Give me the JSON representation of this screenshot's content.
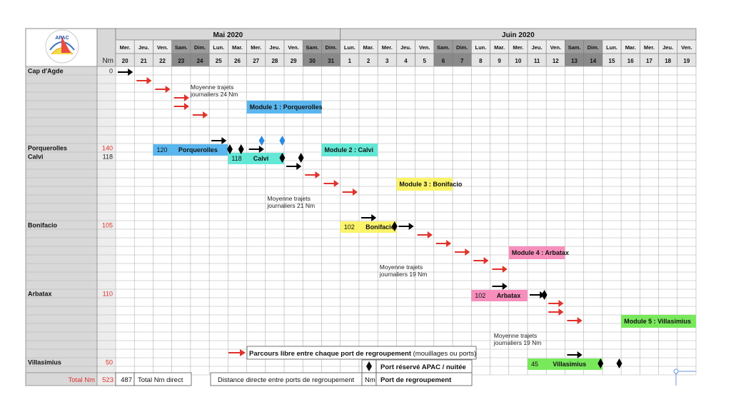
{
  "months": [
    {
      "label": "Mai 2020",
      "first_day": 0,
      "last_day": 11
    },
    {
      "label": "Juin 2020",
      "first_day": 12,
      "last_day": 30
    }
  ],
  "days": [
    {
      "wd": "Mer.",
      "d": "20",
      "we": false
    },
    {
      "wd": "Jeu.",
      "d": "21",
      "we": false
    },
    {
      "wd": "Ven.",
      "d": "22",
      "we": false
    },
    {
      "wd": "Sam.",
      "d": "23",
      "we": true
    },
    {
      "wd": "Dim.",
      "d": "24",
      "we": true
    },
    {
      "wd": "Lun.",
      "d": "25",
      "we": false
    },
    {
      "wd": "Mar.",
      "d": "26",
      "we": false
    },
    {
      "wd": "Mer.",
      "d": "27",
      "we": false
    },
    {
      "wd": "Jeu.",
      "d": "28",
      "we": false
    },
    {
      "wd": "Ven.",
      "d": "29",
      "we": false
    },
    {
      "wd": "Sam.",
      "d": "30",
      "we": true
    },
    {
      "wd": "Dim.",
      "d": "31",
      "we": true
    },
    {
      "wd": "Lun.",
      "d": "1",
      "we": false
    },
    {
      "wd": "Mar.",
      "d": "2",
      "we": false
    },
    {
      "wd": "Mer.",
      "d": "3",
      "we": false
    },
    {
      "wd": "Jeu.",
      "d": "4",
      "we": false
    },
    {
      "wd": "Ven.",
      "d": "5",
      "we": false
    },
    {
      "wd": "Sam.",
      "d": "6",
      "we": true
    },
    {
      "wd": "Dim.",
      "d": "7",
      "we": true
    },
    {
      "wd": "Lun.",
      "d": "8",
      "we": false
    },
    {
      "wd": "Mar.",
      "d": "9",
      "we": false
    },
    {
      "wd": "Mer.",
      "d": "10",
      "we": false
    },
    {
      "wd": "Jeu.",
      "d": "11",
      "we": false
    },
    {
      "wd": "Ven.",
      "d": "12",
      "we": false
    },
    {
      "wd": "Sam.",
      "d": "13",
      "we": true
    },
    {
      "wd": "Dim.",
      "d": "14",
      "we": true
    },
    {
      "wd": "Lun.",
      "d": "15",
      "we": false
    },
    {
      "wd": "Mar.",
      "d": "16",
      "we": false
    },
    {
      "wd": "Mer.",
      "d": "17",
      "we": false
    },
    {
      "wd": "Jeu.",
      "d": "18",
      "we": false
    },
    {
      "wd": "Ven.",
      "d": "19",
      "we": false
    }
  ],
  "nm_header": "Nm",
  "logo_text": "APAC",
  "ports": [
    {
      "row": 0,
      "name": "Cap d'Agde",
      "nm": "0",
      "nm_color": "#222222"
    },
    {
      "row": 9,
      "name": "Porquerolles",
      "nm": "140",
      "nm_color": "#e0322b"
    },
    {
      "row": 10,
      "name": "Calvi",
      "nm": "118",
      "nm_color": "#222222"
    },
    {
      "row": 18,
      "name": "Bonifacio",
      "nm": "105",
      "nm_color": "#e0322b"
    },
    {
      "row": 26,
      "name": "Arbatax",
      "nm": "110",
      "nm_color": "#e0322b"
    },
    {
      "row": 34,
      "name": "Villasimius",
      "nm": "50",
      "nm_color": "#e0322b"
    }
  ],
  "modules": [
    {
      "label": "Module 1 : Porquerolles",
      "row": 4,
      "c0": 7,
      "c1": 11,
      "color": "#5ab6ee"
    },
    {
      "label": "Module 2 : Calvi",
      "row": 9,
      "c0": 11,
      "c1": 14,
      "color": "#63e8d6"
    },
    {
      "label": "Module 3 : Bonifacio",
      "row": 13,
      "c0": 15,
      "c1": 18,
      "color": "#fbf46a"
    },
    {
      "label": "Module 4 : Arbatax",
      "row": 21,
      "c0": 21,
      "c1": 24,
      "color": "#f78fbd"
    },
    {
      "label": "Module 5 : Villasimius",
      "row": 29,
      "c0": 27,
      "c1": 31,
      "color": "#79e95c"
    }
  ],
  "stays": [
    {
      "nm": "120",
      "port": "Porquerolles",
      "row": 9,
      "c0": 2,
      "c1": 6,
      "color": "#5ab6ee"
    },
    {
      "nm": "118",
      "port": "Calvi",
      "row": 10,
      "c0": 6,
      "c1": 9,
      "color": "#63e8d6"
    },
    {
      "nm": "102",
      "port": "Bonifacio",
      "row": 18,
      "c0": 12,
      "c1": 15,
      "color": "#fbf46a"
    },
    {
      "nm": "102",
      "port": "Arbatax",
      "row": 26,
      "c0": 19,
      "c1": 22,
      "color": "#f78fbd"
    },
    {
      "nm": "45",
      "port": "Villasimius",
      "row": 34,
      "c0": 22,
      "c1": 26,
      "color": "#79e95c"
    }
  ],
  "red_arrows": [
    {
      "row": 1,
      "col": 1
    },
    {
      "row": 2,
      "col": 2
    },
    {
      "row": 3,
      "col": 3
    },
    {
      "row": 4,
      "col": 3
    },
    {
      "row": 5,
      "col": 4
    },
    {
      "row": 12,
      "col": 10
    },
    {
      "row": 13,
      "col": 11
    },
    {
      "row": 14,
      "col": 12
    },
    {
      "row": 19,
      "col": 16
    },
    {
      "row": 20,
      "col": 17
    },
    {
      "row": 21,
      "col": 18
    },
    {
      "row": 22,
      "col": 19
    },
    {
      "row": 23,
      "col": 20
    },
    {
      "row": 27,
      "col": 23
    },
    {
      "row": 28,
      "col": 23
    },
    {
      "row": 29,
      "col": 24
    }
  ],
  "black_arrows": [
    {
      "row": 0,
      "col": 0
    },
    {
      "row": 8,
      "col": 5
    },
    {
      "row": 9,
      "col": 7
    },
    {
      "row": 11,
      "col": 9
    },
    {
      "row": 17,
      "col": 13
    },
    {
      "row": 18,
      "col": 15
    },
    {
      "row": 25,
      "col": 20
    },
    {
      "row": 26,
      "col": 22
    },
    {
      "row": 33,
      "col": 24
    }
  ],
  "black_diamonds": [
    {
      "row": 9,
      "x": 6.1
    },
    {
      "row": 9,
      "x": 6.7
    },
    {
      "row": 10,
      "x": 8.9
    },
    {
      "row": 10,
      "x": 9.9
    },
    {
      "row": 18,
      "x": 14.9
    },
    {
      "row": 26,
      "x": 22.9
    },
    {
      "row": 34,
      "x": 25.9
    },
    {
      "row": 34,
      "x": 26.9
    }
  ],
  "blue_diamonds": [
    {
      "row": 8,
      "x": 7.8
    },
    {
      "row": 8,
      "x": 8.9
    }
  ],
  "annotations": [
    {
      "lines": [
        "Moyenne trajets",
        "journaliers 24 Nm"
      ],
      "row": 2,
      "col": 4.0
    },
    {
      "lines": [
        "Moyenne trajets",
        "journaliers 21 Nm"
      ],
      "row": 15,
      "col": 8.1
    },
    {
      "lines": [
        "Moyenne trajets",
        "journaliers 19 Nm"
      ],
      "row": 23,
      "col": 14.1
    },
    {
      "lines": [
        "Moyenne trajets",
        "journaliers 19 Nm"
      ],
      "row": 31,
      "col": 20.2
    }
  ],
  "legend": {
    "parcours_bold": "Parcours libre entre chaque port de regroupement",
    "parcours_rest": " (mouillages ou ports)",
    "port_reserve": "Port réservé APAC / nuitée",
    "distance_label": "Distance directe entre ports de regroupement",
    "nm_unit": "Nm",
    "port_regroupement": "Port de regroupement"
  },
  "totals": {
    "label": "Total Nm",
    "value": "523",
    "direct_value": "487",
    "direct_label": "Total Nm direct"
  }
}
